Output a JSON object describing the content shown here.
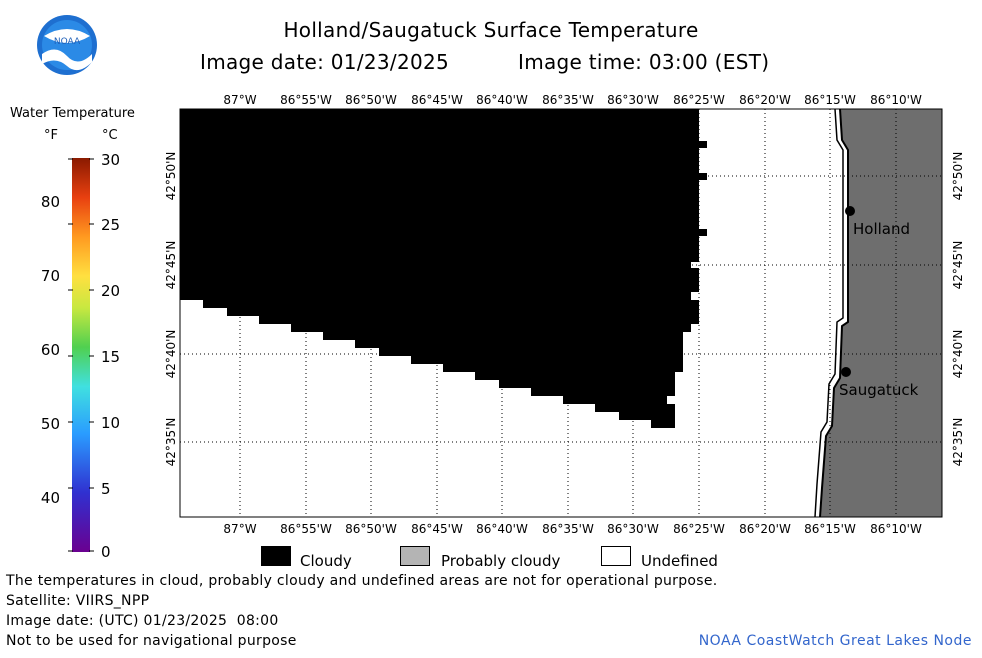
{
  "header": {
    "title": "Holland/Saugatuck Surface Temperature",
    "image_date": "Image date: 01/23/2025",
    "image_time": "Image time: 03:00 (EST)",
    "logo_text": "NOAA"
  },
  "colorbar": {
    "title": "Water Temperature",
    "unit_f": "°F",
    "unit_c": "°C",
    "ticks_f": [
      "80",
      "70",
      "60",
      "50",
      "40"
    ],
    "ticks_c": [
      "30",
      "25",
      "20",
      "15",
      "10",
      "5",
      "0"
    ],
    "range_c": [
      0,
      30
    ]
  },
  "map": {
    "lon_labels": [
      "87°W",
      "86°55'W",
      "86°50'W",
      "86°45'W",
      "86°40'W",
      "86°35'W",
      "86°30'W",
      "86°25'W",
      "86°20'W",
      "86°15'W",
      "86°10'W"
    ],
    "lat_labels": [
      "42°50'N",
      "42°45'N",
      "42°40'N",
      "42°35'N"
    ],
    "cities": [
      {
        "name": "Holland"
      },
      {
        "name": "Saugatuck"
      }
    ],
    "colors": {
      "cloud": "#000000",
      "land": "#6e6e6e",
      "undefined": "#ffffff"
    }
  },
  "legend": {
    "cloudy": "Cloudy",
    "probably_cloudy": "Probably cloudy",
    "undefined": "Undefined",
    "colors": {
      "cloudy": "#000000",
      "probably_cloudy": "#b4b4b4",
      "undefined": "#ffffff"
    }
  },
  "footer": {
    "note": "The temperatures in cloud, probably cloudy and undefined areas are not for operational purpose.",
    "satellite": "Satellite: VIIRS_NPP",
    "utc_date": "Image date: (UTC) 01/23/2025  08:00",
    "nav_warning": "Not to be used for navigational purpose",
    "credit": "NOAA CoastWatch Great Lakes Node"
  }
}
